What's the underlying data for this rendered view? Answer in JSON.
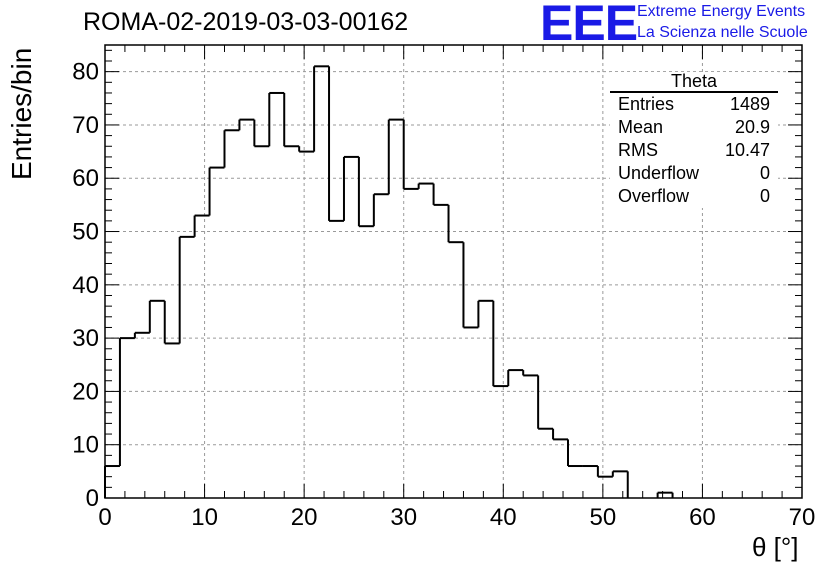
{
  "title": "ROMA-02-2019-03-03-00162",
  "logo": {
    "mark": "EEE",
    "line1": "Extreme Energy Events",
    "line2": "La Scienza nelle Scuole",
    "color": "#1a1ae6"
  },
  "stats_box": {
    "title": "Theta",
    "rows": [
      {
        "label": "Entries",
        "value": "1489"
      },
      {
        "label": "Mean",
        "value": "20.9"
      },
      {
        "label": "RMS",
        "value": "10.47"
      },
      {
        "label": "Underflow",
        "value": "0"
      },
      {
        "label": "Overflow",
        "value": "0"
      }
    ]
  },
  "chart_data": {
    "type": "bar",
    "style": "step-histogram",
    "xlabel": "θ [°]",
    "ylabel": "Entries/bin",
    "xlim": [
      0,
      70
    ],
    "ylim": [
      0,
      85
    ],
    "grid": true,
    "bin_width": 1.5,
    "x_ticks": [
      0,
      10,
      20,
      30,
      40,
      50,
      60,
      70
    ],
    "y_ticks": [
      0,
      10,
      20,
      30,
      40,
      50,
      60,
      70,
      80
    ],
    "values": [
      6,
      30,
      31,
      37,
      29,
      49,
      53,
      62,
      69,
      71,
      66,
      76,
      66,
      65,
      81,
      52,
      64,
      51,
      57,
      71,
      58,
      59,
      55,
      48,
      32,
      37,
      21,
      24,
      23,
      13,
      11,
      6,
      6,
      4,
      5,
      0,
      0,
      1,
      0
    ]
  }
}
